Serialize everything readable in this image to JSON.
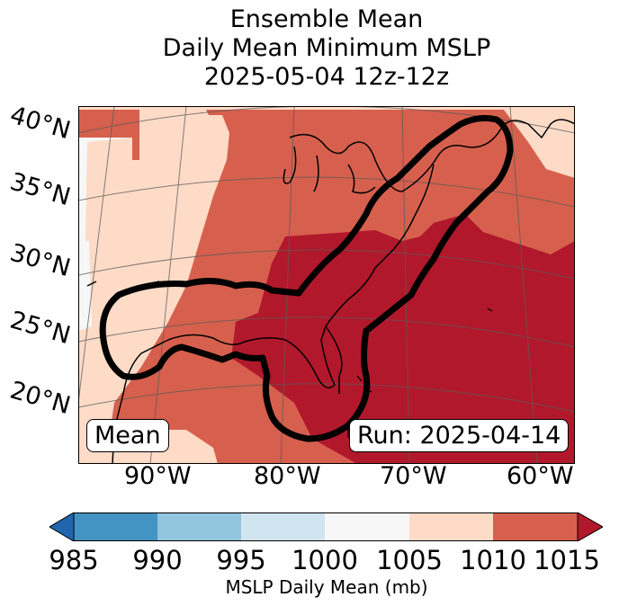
{
  "title": {
    "line1": "Ensemble Mean",
    "line2": "Daily Mean Minimum MSLP",
    "line3": "2025-05-04 12z-12z"
  },
  "map": {
    "lat_labels": [
      "40°N",
      "35°N",
      "30°N",
      "25°N",
      "20°N"
    ],
    "lon_labels": [
      "90°W",
      "80°W",
      "70°W",
      "60°W"
    ],
    "left_box": "Mean",
    "right_box": "Run: 2025-04-14",
    "colors": {
      "c1000_1005": "#f7f7f7",
      "c1005_1010": "#fddbc7",
      "c1010_1015": "#d6604d",
      "c_over_1015": "#b2182b",
      "contour": "#000000"
    }
  },
  "colorbar": {
    "ticks": [
      "985",
      "990",
      "995",
      "1000",
      "1005",
      "1010",
      "1015"
    ],
    "label": "MSLP Daily Mean (mb)",
    "colors": [
      "#2166ac",
      "#4393c3",
      "#92c5de",
      "#d1e5f0",
      "#f7f7f7",
      "#fddbc7",
      "#d6604d",
      "#b2182b"
    ]
  }
}
